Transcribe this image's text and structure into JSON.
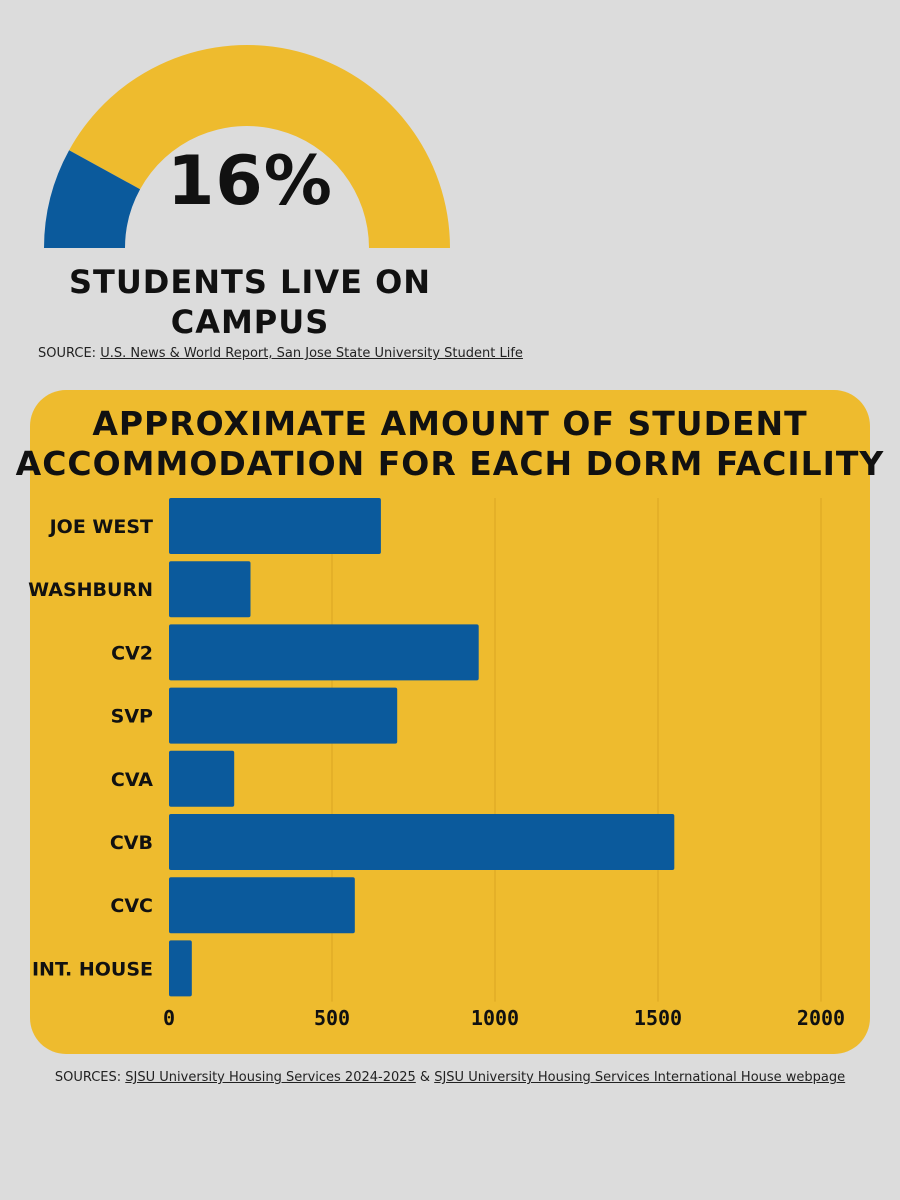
{
  "gauge": {
    "value_label": "16%",
    "percent": 16,
    "caption_line1": "STUDENTS LIVE ON",
    "caption_line2": "CAMPUS",
    "filled_color": "#0b5a9c",
    "rest_color": "#eebb2e"
  },
  "source_top": {
    "prefix": "SOURCE:",
    "link_text": "U.S. News & World Report, San Jose State University Student Life"
  },
  "chart_data": {
    "type": "bar",
    "orientation": "horizontal",
    "title_line1": "APPROXIMATE AMOUNT OF STUDENT",
    "title_line2": "ACCOMMODATION FOR EACH DORM FACILITY",
    "categories": [
      "JOE WEST",
      "WASHBURN",
      "CV2",
      "SVP",
      "CVA",
      "CVB",
      "CVC",
      "INT. HOUSE"
    ],
    "values": [
      650,
      250,
      950,
      700,
      200,
      1550,
      570,
      70
    ],
    "xlim": [
      0,
      2000
    ],
    "xticks": [
      "0",
      "500",
      "1000",
      "1500",
      "2000"
    ],
    "xtick_values": [
      0,
      500,
      1000,
      1500,
      2000
    ],
    "xlabel": "",
    "ylabel": "",
    "grid": true,
    "bar_color": "#0b5a9c",
    "background_color": "#eebb2e"
  },
  "sources_bottom": {
    "prefix": "SOURCES:",
    "link1": "SJSU University Housing Services 2024-2025",
    "connector": "&",
    "link2": "SJSU University Housing Services International House webpage"
  }
}
